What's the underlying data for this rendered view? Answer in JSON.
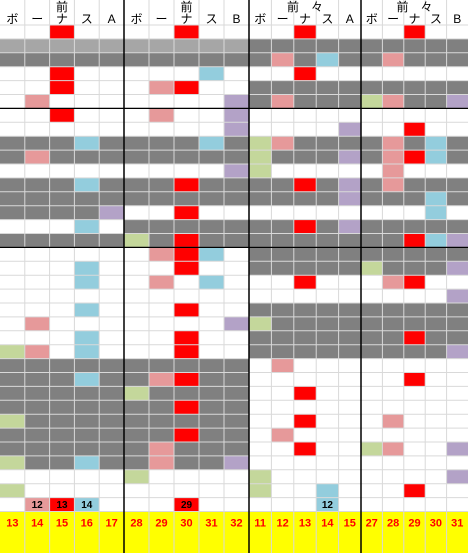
{
  "colors": {
    "red": "#ff0000",
    "gray": "#808080",
    "light_gray": "#a6a6a6",
    "pink": "#e6999a",
    "blue": "#93cddd",
    "purple": "#b3a2c7",
    "green": "#c4d79b",
    "yellow": "#ffff00",
    "grid": "#d9d9d9",
    "block_line": "#000000"
  },
  "panels": [
    {
      "title": "前",
      "columns": [
        "ボ",
        "ー",
        "ナ",
        "ス",
        "A"
      ],
      "footer": [
        "13",
        "14",
        "15",
        "16",
        "17"
      ],
      "cell_numbers": [
        {
          "row": 34,
          "col": 1,
          "value": "12"
        },
        {
          "row": 34,
          "col": 2,
          "value": "13"
        },
        {
          "row": 34,
          "col": 3,
          "value": "14"
        }
      ],
      "gray_rows": [
        1,
        2,
        8,
        9,
        11,
        12,
        13,
        15,
        24,
        25,
        26,
        27,
        28,
        29,
        30,
        31
      ],
      "rows": [
        [
          0,
          0,
          "red",
          0,
          0
        ],
        [
          0,
          0,
          0,
          0,
          0
        ],
        [
          0,
          0,
          0,
          0,
          0
        ],
        [
          0,
          0,
          "red",
          0,
          0
        ],
        [
          0,
          0,
          "red",
          0,
          0
        ],
        [
          0,
          "pink",
          0,
          0,
          0
        ],
        [
          0,
          0,
          "red",
          0,
          0
        ],
        [
          0,
          0,
          0,
          0,
          0
        ],
        [
          0,
          0,
          0,
          "blue",
          0
        ],
        [
          0,
          "pink",
          0,
          0,
          0
        ],
        [
          0,
          0,
          0,
          0,
          0
        ],
        [
          0,
          0,
          0,
          "blue",
          0
        ],
        [
          0,
          0,
          0,
          0,
          0
        ],
        [
          0,
          0,
          0,
          0,
          "purple"
        ],
        [
          0,
          0,
          0,
          "blue",
          0
        ],
        [
          0,
          0,
          0,
          0,
          0
        ],
        [
          0,
          0,
          0,
          0,
          0
        ],
        [
          0,
          0,
          0,
          "blue",
          0
        ],
        [
          0,
          0,
          0,
          "blue",
          0
        ],
        [
          0,
          0,
          0,
          0,
          0
        ],
        [
          0,
          0,
          0,
          "blue",
          0
        ],
        [
          0,
          "pink",
          0,
          0,
          0
        ],
        [
          0,
          0,
          0,
          "blue",
          0
        ],
        [
          "green",
          "pink",
          0,
          "blue",
          0
        ],
        [
          0,
          0,
          0,
          0,
          0
        ],
        [
          0,
          0,
          0,
          "blue",
          0
        ],
        [
          0,
          0,
          0,
          0,
          0
        ],
        [
          0,
          0,
          0,
          0,
          0
        ],
        [
          "green",
          0,
          0,
          0,
          0
        ],
        [
          0,
          0,
          0,
          0,
          0
        ],
        [
          0,
          0,
          0,
          0,
          0
        ],
        [
          "green",
          0,
          0,
          "blue",
          0
        ],
        [
          0,
          0,
          0,
          0,
          0
        ],
        [
          "green",
          0,
          0,
          0,
          0
        ],
        [
          0,
          "pink",
          "red",
          "blue",
          0
        ]
      ]
    },
    {
      "title": "前",
      "columns": [
        "ボ",
        "ー",
        "ナ",
        "ス",
        "B"
      ],
      "footer": [
        "28",
        "29",
        "30",
        "31",
        "32"
      ],
      "cell_numbers": [
        {
          "row": 34,
          "col": 2,
          "value": "29"
        }
      ],
      "gray_rows": [
        1,
        2,
        8,
        9,
        11,
        12,
        14,
        15,
        24,
        25,
        26,
        27,
        28,
        29,
        30,
        31
      ],
      "rows": [
        [
          0,
          0,
          "red",
          0,
          0
        ],
        [
          0,
          0,
          0,
          0,
          0
        ],
        [
          0,
          0,
          0,
          0,
          0
        ],
        [
          0,
          0,
          0,
          "blue",
          0
        ],
        [
          0,
          "pink",
          "red",
          0,
          0
        ],
        [
          0,
          0,
          0,
          0,
          "purple"
        ],
        [
          0,
          "pink",
          0,
          0,
          "purple"
        ],
        [
          0,
          0,
          0,
          0,
          "purple"
        ],
        [
          0,
          0,
          0,
          "blue",
          0
        ],
        [
          0,
          0,
          0,
          0,
          0
        ],
        [
          0,
          0,
          0,
          0,
          "purple"
        ],
        [
          0,
          0,
          "red",
          0,
          0
        ],
        [
          0,
          0,
          0,
          0,
          0
        ],
        [
          0,
          0,
          "red",
          0,
          0
        ],
        [
          0,
          0,
          0,
          0,
          0
        ],
        [
          "green",
          0,
          "red",
          0,
          0
        ],
        [
          0,
          "pink",
          "red",
          "blue",
          0
        ],
        [
          0,
          0,
          "red",
          0,
          0
        ],
        [
          0,
          "pink",
          0,
          "blue",
          0
        ],
        [
          0,
          0,
          0,
          0,
          0
        ],
        [
          0,
          0,
          "red",
          0,
          0
        ],
        [
          0,
          0,
          0,
          0,
          "purple"
        ],
        [
          0,
          0,
          "red",
          0,
          0
        ],
        [
          0,
          0,
          "red",
          0,
          0
        ],
        [
          0,
          0,
          0,
          0,
          0
        ],
        [
          0,
          "pink",
          "red",
          0,
          0
        ],
        [
          "green",
          0,
          0,
          0,
          0
        ],
        [
          0,
          0,
          "red",
          0,
          0
        ],
        [
          0,
          0,
          0,
          0,
          0
        ],
        [
          0,
          0,
          "red",
          0,
          0
        ],
        [
          0,
          "pink",
          0,
          0,
          0
        ],
        [
          0,
          "pink",
          0,
          0,
          "purple"
        ],
        [
          "green",
          0,
          0,
          0,
          0
        ],
        [
          0,
          0,
          0,
          0,
          0
        ],
        [
          0,
          0,
          "red",
          0,
          0
        ]
      ]
    },
    {
      "title": "前　々",
      "columns": [
        "ボ",
        "ー",
        "ナ",
        "ス",
        "A"
      ],
      "footer": [
        "11",
        "12",
        "13",
        "14",
        "15"
      ],
      "cell_numbers": [
        {
          "row": 34,
          "col": 3,
          "value": "12"
        }
      ],
      "gray_rows": [
        1,
        2,
        4,
        5,
        8,
        9,
        11,
        12,
        14,
        15,
        16,
        17,
        20,
        21,
        22,
        23
      ],
      "rows": [
        [
          0,
          0,
          "red",
          0,
          0
        ],
        [
          0,
          0,
          0,
          0,
          0
        ],
        [
          0,
          "pink",
          0,
          "blue",
          0
        ],
        [
          0,
          0,
          "red",
          0,
          0
        ],
        [
          0,
          0,
          0,
          0,
          0
        ],
        [
          0,
          "pink",
          0,
          0,
          0
        ],
        [
          0,
          0,
          0,
          0,
          0
        ],
        [
          0,
          0,
          0,
          0,
          "purple"
        ],
        [
          "green",
          "pink",
          0,
          0,
          0
        ],
        [
          "green",
          0,
          0,
          0,
          "purple"
        ],
        [
          "green",
          0,
          0,
          0,
          0
        ],
        [
          0,
          0,
          "red",
          0,
          "purple"
        ],
        [
          0,
          0,
          0,
          0,
          "purple"
        ],
        [
          0,
          0,
          0,
          0,
          0
        ],
        [
          0,
          0,
          "red",
          0,
          "purple"
        ],
        [
          0,
          0,
          0,
          0,
          0
        ],
        [
          0,
          0,
          0,
          0,
          0
        ],
        [
          0,
          0,
          0,
          0,
          0
        ],
        [
          0,
          0,
          "red",
          0,
          0
        ],
        [
          0,
          0,
          0,
          0,
          0
        ],
        [
          0,
          0,
          0,
          0,
          0
        ],
        [
          "green",
          0,
          0,
          0,
          0
        ],
        [
          0,
          0,
          0,
          0,
          0
        ],
        [
          0,
          0,
          0,
          0,
          0
        ],
        [
          0,
          "pink",
          0,
          0,
          0
        ],
        [
          0,
          0,
          0,
          0,
          0
        ],
        [
          0,
          0,
          "red",
          0,
          0
        ],
        [
          0,
          0,
          0,
          0,
          0
        ],
        [
          0,
          0,
          "red",
          0,
          0
        ],
        [
          0,
          "pink",
          0,
          0,
          0
        ],
        [
          0,
          0,
          "red",
          0,
          0
        ],
        [
          0,
          0,
          0,
          0,
          0
        ],
        [
          "green",
          0,
          0,
          0,
          0
        ],
        [
          "green",
          0,
          0,
          "blue",
          0
        ],
        [
          0,
          0,
          0,
          "blue",
          0
        ]
      ]
    },
    {
      "title": "前　々",
      "columns": [
        "ボ",
        "ー",
        "ナ",
        "ス",
        "B"
      ],
      "footer": [
        "27",
        "28",
        "29",
        "30",
        "31"
      ],
      "cell_numbers": [],
      "gray_rows": [
        1,
        2,
        4,
        5,
        8,
        9,
        11,
        12,
        14,
        15,
        16,
        17,
        20,
        21,
        22,
        23
      ],
      "rows": [
        [
          0,
          0,
          "red",
          0,
          0
        ],
        [
          0,
          0,
          0,
          0,
          0
        ],
        [
          0,
          "pink",
          0,
          0,
          0
        ],
        [
          0,
          0,
          0,
          0,
          0
        ],
        [
          0,
          0,
          0,
          0,
          0
        ],
        [
          "green",
          "pink",
          0,
          0,
          "purple"
        ],
        [
          0,
          0,
          0,
          0,
          0
        ],
        [
          0,
          0,
          "red",
          0,
          0
        ],
        [
          0,
          "pink",
          0,
          "blue",
          0
        ],
        [
          0,
          "pink",
          "red",
          "blue",
          0
        ],
        [
          0,
          "pink",
          0,
          0,
          0
        ],
        [
          0,
          "pink",
          0,
          0,
          0
        ],
        [
          0,
          0,
          0,
          "blue",
          0
        ],
        [
          0,
          0,
          0,
          "blue",
          0
        ],
        [
          0,
          0,
          0,
          0,
          0
        ],
        [
          0,
          0,
          "red",
          "blue",
          "purple"
        ],
        [
          0,
          0,
          0,
          0,
          0
        ],
        [
          "green",
          0,
          0,
          0,
          "purple"
        ],
        [
          0,
          "pink",
          "red",
          0,
          0
        ],
        [
          0,
          0,
          0,
          0,
          "purple"
        ],
        [
          0,
          0,
          0,
          0,
          0
        ],
        [
          0,
          0,
          0,
          0,
          0
        ],
        [
          0,
          0,
          "red",
          0,
          0
        ],
        [
          0,
          0,
          0,
          0,
          "purple"
        ],
        [
          0,
          0,
          0,
          0,
          0
        ],
        [
          0,
          0,
          "red",
          0,
          0
        ],
        [
          0,
          0,
          0,
          0,
          0
        ],
        [
          0,
          0,
          0,
          0,
          0
        ],
        [
          0,
          "pink",
          0,
          0,
          0
        ],
        [
          0,
          0,
          0,
          0,
          0
        ],
        [
          "green",
          "pink",
          0,
          0,
          "purple"
        ],
        [
          0,
          0,
          0,
          0,
          0
        ],
        [
          0,
          0,
          0,
          0,
          "purple"
        ],
        [
          0,
          0,
          "red",
          0,
          0
        ],
        [
          0,
          0,
          0,
          0,
          0
        ]
      ]
    }
  ]
}
